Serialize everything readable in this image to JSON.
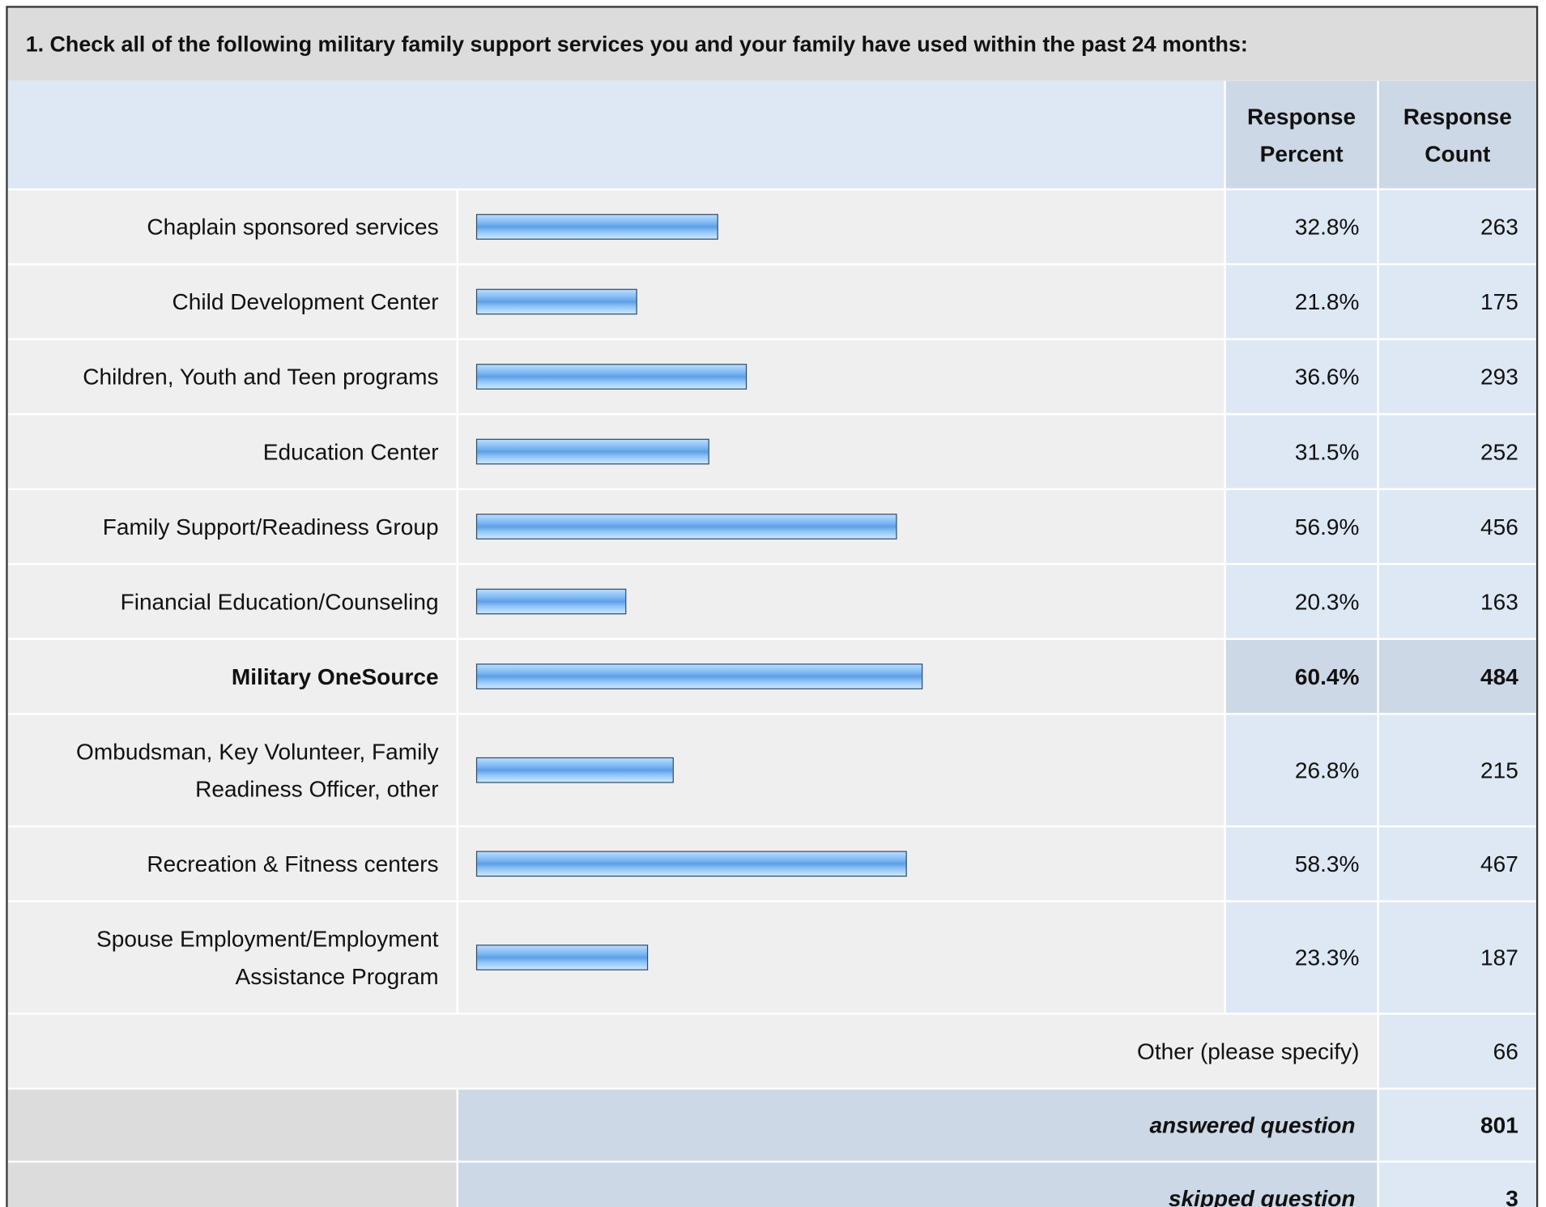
{
  "title": "1. Check all of the following military family support services you and your family have used within the past 24 months:",
  "header": {
    "percent": "Response Percent",
    "count": "Response Count"
  },
  "rows": [
    {
      "label": "Chaplain sponsored services",
      "percent": 32.8,
      "percent_label": "32.8%",
      "count": 263
    },
    {
      "label": "Child Development Center",
      "percent": 21.8,
      "percent_label": "21.8%",
      "count": 175
    },
    {
      "label": "Children, Youth and Teen programs",
      "percent": 36.6,
      "percent_label": "36.6%",
      "count": 293
    },
    {
      "label": "Education Center",
      "percent": 31.5,
      "percent_label": "31.5%",
      "count": 252
    },
    {
      "label": "Family Support/Readiness Group",
      "percent": 56.9,
      "percent_label": "56.9%",
      "count": 456
    },
    {
      "label": "Financial Education/Counseling",
      "percent": 20.3,
      "percent_label": "20.3%",
      "count": 163
    },
    {
      "label": "Military OneSource",
      "percent": 60.4,
      "percent_label": "60.4%",
      "count": 484,
      "highlight": true
    },
    {
      "label": "Ombudsman, Key Volunteer, Family Readiness Officer, other",
      "percent": 26.8,
      "percent_label": "26.8%",
      "count": 215
    },
    {
      "label": "Recreation & Fitness centers",
      "percent": 58.3,
      "percent_label": "58.3%",
      "count": 467
    },
    {
      "label": "Spouse Employment/Employment Assistance Program",
      "percent": 23.3,
      "percent_label": "23.3%",
      "count": 187
    }
  ],
  "other": {
    "label": "Other (please specify)",
    "count": 66
  },
  "answered": {
    "label": "answered question",
    "count": 801
  },
  "skipped": {
    "label": "skipped question",
    "count": 3
  }
}
